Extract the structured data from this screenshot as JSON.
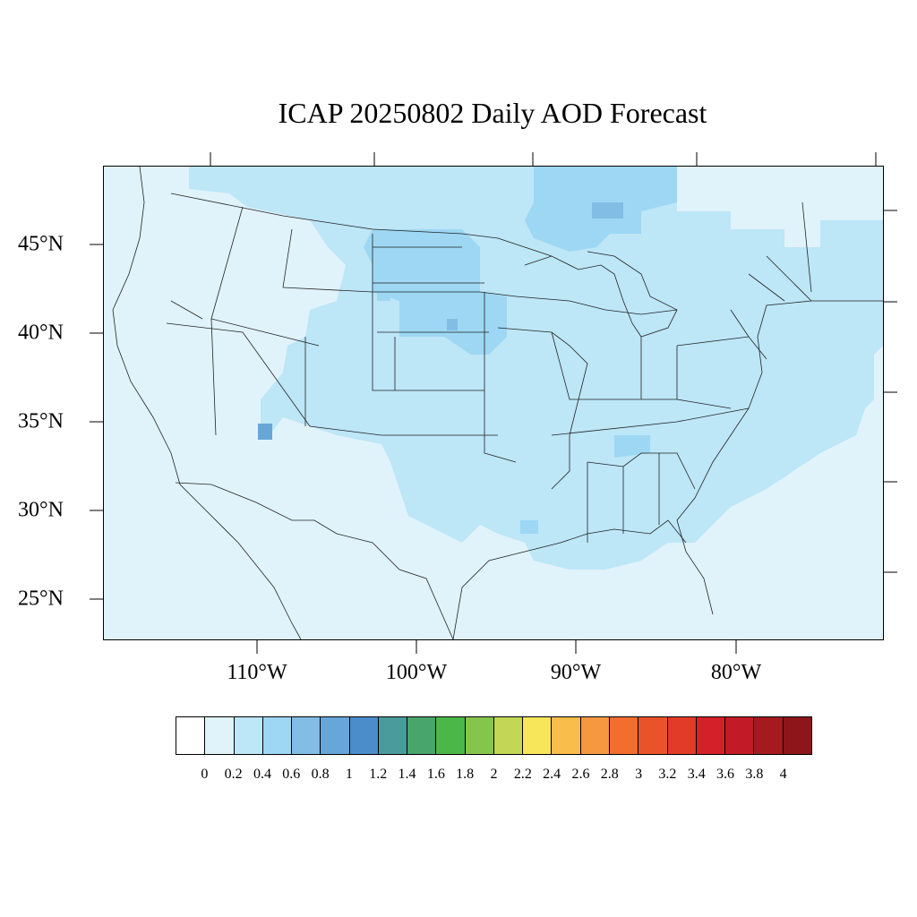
{
  "map": {
    "title": "ICAP 20250802 Daily AOD Forecast",
    "lat_labels": [
      "45°N",
      "40°N",
      "35°N",
      "30°N",
      "25°N"
    ],
    "lon_labels": [
      "110°W",
      "100°W",
      "90°W",
      "80°W"
    ],
    "background_color": "#e0f3fb",
    "region": "Continental United States"
  },
  "colorbar": {
    "labels": [
      "0",
      "0.2",
      "0.4",
      "0.6",
      "0.8",
      "1",
      "1.2",
      "1.4",
      "1.6",
      "1.8",
      "2",
      "2.2",
      "2.4",
      "2.6",
      "2.8",
      "3",
      "3.2",
      "3.4",
      "3.6",
      "3.8",
      "4"
    ],
    "colors": [
      "#ffffff",
      "#e0f3fb",
      "#bde6f7",
      "#9dd7f3",
      "#82bde5",
      "#67a6d9",
      "#4b8ccb",
      "#4a9b9b",
      "#48a56c",
      "#4bb748",
      "#86c54c",
      "#c3d755",
      "#f7e65a",
      "#f8bd4a",
      "#f69840",
      "#f26d2e",
      "#ea5329",
      "#e23b27",
      "#d42029",
      "#c21b27",
      "#a51a1f",
      "#8d161b"
    ]
  }
}
